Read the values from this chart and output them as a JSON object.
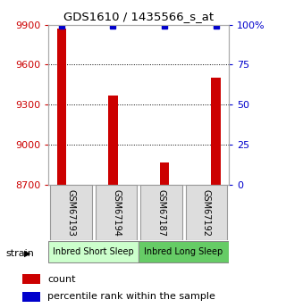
{
  "title": "GDS1610 / 1435566_s_at",
  "samples": [
    "GSM67193",
    "GSM67194",
    "GSM67187",
    "GSM67192"
  ],
  "counts": [
    9870,
    9370,
    8870,
    9500
  ],
  "percentiles": [
    99,
    99,
    99,
    99
  ],
  "ylim_left": [
    8700,
    9900
  ],
  "ylim_right": [
    0,
    100
  ],
  "yticks_left": [
    8700,
    9000,
    9300,
    9600,
    9900
  ],
  "yticks_right": [
    0,
    25,
    50,
    75,
    100
  ],
  "ytick_labels_right": [
    "0",
    "25",
    "50",
    "75",
    "100%"
  ],
  "bar_color": "#cc0000",
  "dot_color": "#0000cc",
  "groups": [
    {
      "label": "Inbred Short Sleep",
      "indices": [
        0,
        1
      ],
      "color": "#ccffcc"
    },
    {
      "label": "Inbred Long Sleep",
      "indices": [
        2,
        3
      ],
      "color": "#66cc66"
    }
  ],
  "bar_width": 0.18,
  "figsize": [
    3.2,
    3.45
  ],
  "dpi": 100,
  "left_tick_color": "#cc0000",
  "right_tick_color": "#0000cc",
  "baseline": 8700
}
